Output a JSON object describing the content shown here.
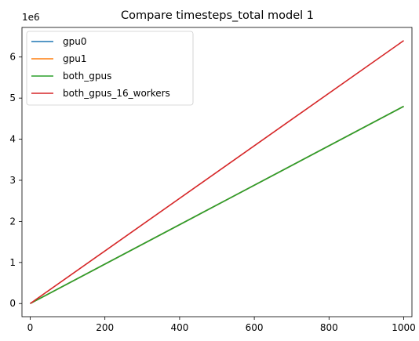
{
  "chart_data": {
    "type": "line",
    "title": "Compare timesteps_total model 1",
    "xlabel": "",
    "ylabel": "",
    "y_offset_label": "1e6",
    "xlim": [
      -22,
      1022
    ],
    "ylim": [
      -320000,
      6720000
    ],
    "xticks": [
      0,
      200,
      400,
      600,
      800,
      1000
    ],
    "xtick_labels": [
      "0",
      "200",
      "400",
      "600",
      "800",
      "1000"
    ],
    "yticks": [
      0,
      1000000,
      2000000,
      3000000,
      4000000,
      5000000,
      6000000
    ],
    "ytick_labels": [
      "0",
      "1",
      "2",
      "3",
      "4",
      "5",
      "6"
    ],
    "grid": false,
    "legend_position": "upper-left",
    "series": [
      {
        "name": "gpu0",
        "color": "#1f77b4",
        "x": [
          0,
          1000
        ],
        "y": [
          0,
          4800000
        ]
      },
      {
        "name": "gpu1",
        "color": "#ff7f0e",
        "x": [
          0,
          1000
        ],
        "y": [
          0,
          4800000
        ]
      },
      {
        "name": "both_gpus",
        "color": "#2ca02c",
        "x": [
          0,
          1000
        ],
        "y": [
          0,
          4800000
        ]
      },
      {
        "name": "both_gpus_16_workers",
        "color": "#d62728",
        "x": [
          0,
          1000
        ],
        "y": [
          0,
          6400000
        ]
      }
    ]
  }
}
